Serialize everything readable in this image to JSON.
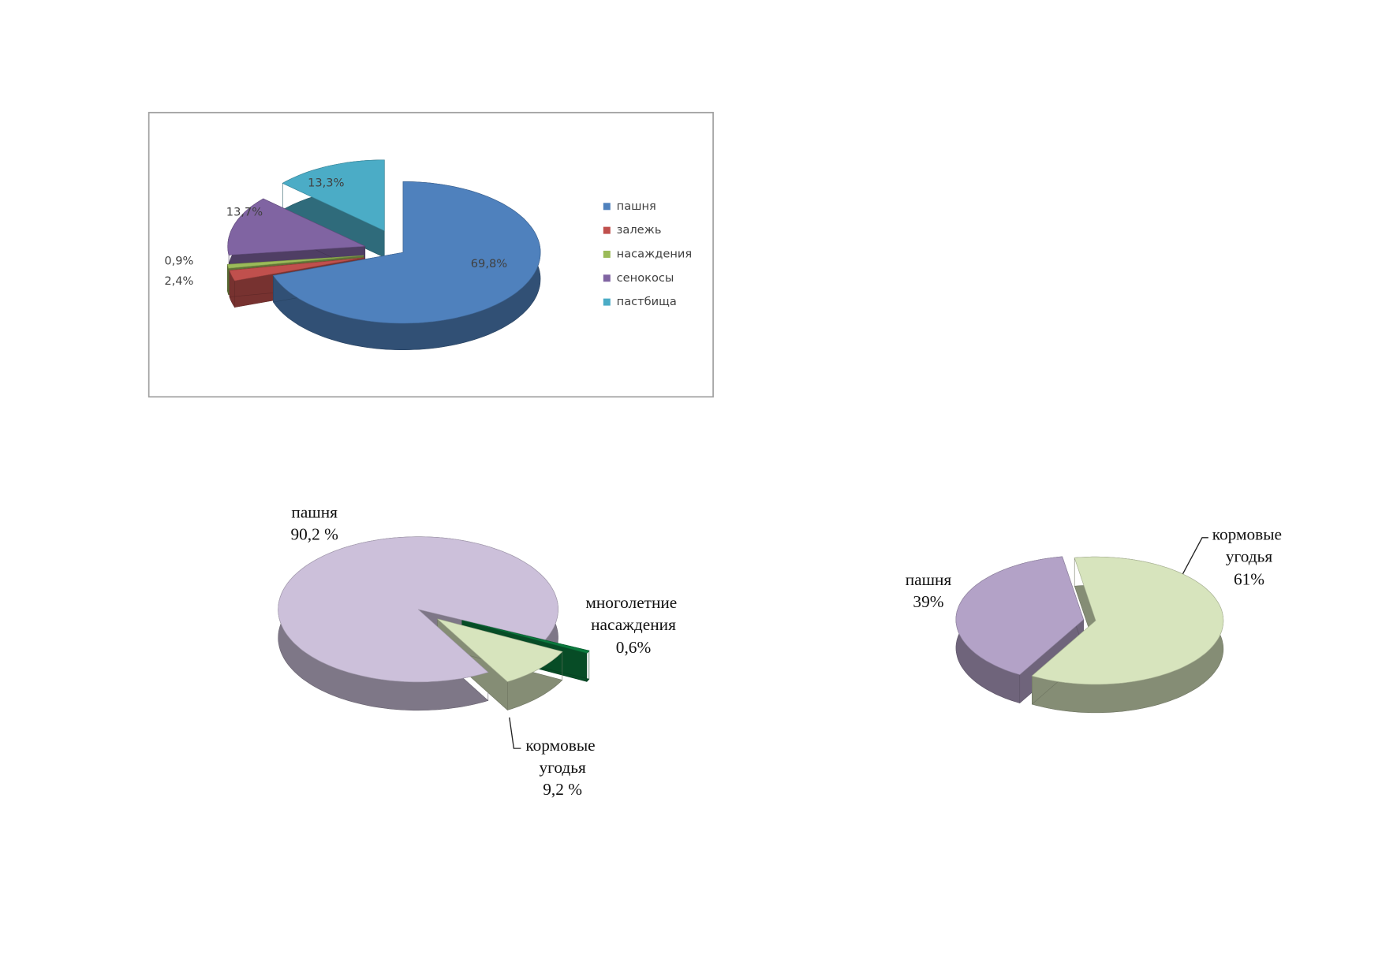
{
  "chart_data": [
    {
      "type": "pie",
      "categories": [
        "пашня",
        "залежь",
        "насаждения",
        "сенокосы",
        "пастбища"
      ],
      "values": [
        69.8,
        2.4,
        0.9,
        13.7,
        13.3
      ],
      "value_labels": [
        "69,8%",
        "2,4%",
        "0,9%",
        "13,7%",
        "13,3%"
      ],
      "colors": [
        "#4f81bd",
        "#c0504d",
        "#9bbb59",
        "#8064a2",
        "#4bacc6"
      ],
      "legend": "right"
    },
    {
      "type": "pie",
      "categories": [
        "пашня",
        "многолетние насаждения",
        "кормовые угодья"
      ],
      "values": [
        90.2,
        0.6,
        9.2
      ],
      "value_labels": [
        "90,2 %",
        "0,6%",
        "9,2 %"
      ],
      "colors": [
        "#ccc0da",
        "#0b7a3e",
        "#d7e4bd"
      ]
    },
    {
      "type": "pie",
      "categories": [
        "пашня",
        "кормовые угодья"
      ],
      "values": [
        39,
        61
      ],
      "value_labels": [
        "39%",
        "61%"
      ],
      "colors": [
        "#b3a2c7",
        "#d7e4bd"
      ]
    }
  ]
}
